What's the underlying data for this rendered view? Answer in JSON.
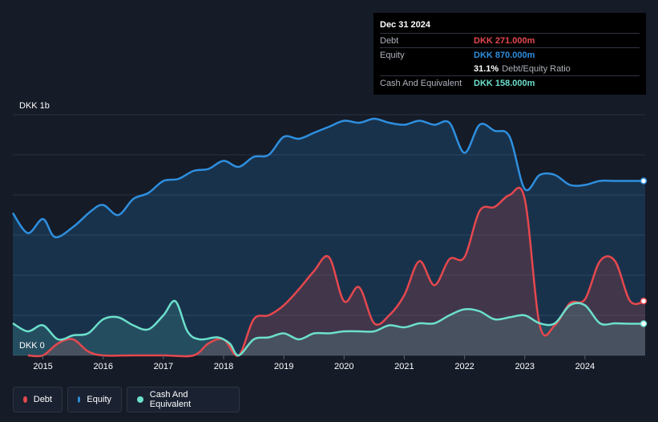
{
  "tooltip": {
    "date": "Dec 31 2024",
    "debt_label": "Debt",
    "debt_value": "DKK 271.000m",
    "equity_label": "Equity",
    "equity_value": "DKK 870.000m",
    "ratio_value": "31.1%",
    "ratio_label": "Debt/Equity Ratio",
    "cash_label": "Cash And Equivalent",
    "cash_value": "DKK 158.000m"
  },
  "legend": {
    "debt": "Debt",
    "equity": "Equity",
    "cash": "Cash And Equivalent"
  },
  "colors": {
    "debt": "#e5484d",
    "equity": "#2e8fdf",
    "cash": "#6ce0cc",
    "background": "#151b27"
  },
  "chart_data": {
    "type": "area",
    "title": "",
    "xlabel": "",
    "ylabel": "",
    "currency": "DKK",
    "unit": "million",
    "ylim": [
      0,
      1200
    ],
    "xlim": [
      2014.5,
      2025.0
    ],
    "y_axis_labels": [
      "DKK 1b",
      "DKK 0"
    ],
    "y_axis_label_values": [
      1000,
      0
    ],
    "x_ticks": [
      "2015",
      "2016",
      "2017",
      "2018",
      "2019",
      "2020",
      "2021",
      "2022",
      "2023",
      "2024"
    ],
    "x_tick_values": [
      2015,
      2016,
      2017,
      2018,
      2019,
      2020,
      2021,
      2022,
      2023,
      2024
    ],
    "series": [
      {
        "name": "Equity",
        "points": [
          [
            2014.5,
            710
          ],
          [
            2014.75,
            610
          ],
          [
            2015.0,
            680
          ],
          [
            2015.2,
            590
          ],
          [
            2015.5,
            640
          ],
          [
            2015.8,
            720
          ],
          [
            2016.0,
            750
          ],
          [
            2016.25,
            700
          ],
          [
            2016.5,
            780
          ],
          [
            2016.75,
            810
          ],
          [
            2017.0,
            870
          ],
          [
            2017.25,
            880
          ],
          [
            2017.5,
            920
          ],
          [
            2017.75,
            930
          ],
          [
            2018.0,
            970
          ],
          [
            2018.25,
            940
          ],
          [
            2018.5,
            990
          ],
          [
            2018.75,
            1000
          ],
          [
            2019.0,
            1090
          ],
          [
            2019.25,
            1080
          ],
          [
            2019.5,
            1110
          ],
          [
            2019.75,
            1140
          ],
          [
            2020.0,
            1170
          ],
          [
            2020.25,
            1160
          ],
          [
            2020.5,
            1180
          ],
          [
            2020.75,
            1160
          ],
          [
            2021.0,
            1150
          ],
          [
            2021.25,
            1170
          ],
          [
            2021.5,
            1150
          ],
          [
            2021.75,
            1160
          ],
          [
            2022.0,
            1010
          ],
          [
            2022.25,
            1150
          ],
          [
            2022.5,
            1120
          ],
          [
            2022.75,
            1090
          ],
          [
            2023.0,
            830
          ],
          [
            2023.25,
            900
          ],
          [
            2023.5,
            900
          ],
          [
            2023.75,
            850
          ],
          [
            2024.0,
            850
          ],
          [
            2024.25,
            870
          ],
          [
            2024.5,
            870
          ],
          [
            2024.75,
            870
          ],
          [
            2025.0,
            870
          ]
        ]
      },
      {
        "name": "Debt",
        "points": [
          [
            2014.75,
            0
          ],
          [
            2015.0,
            0
          ],
          [
            2015.25,
            60
          ],
          [
            2015.5,
            80
          ],
          [
            2015.75,
            20
          ],
          [
            2016.0,
            0
          ],
          [
            2016.5,
            0
          ],
          [
            2017.0,
            0
          ],
          [
            2017.5,
            0
          ],
          [
            2017.75,
            60
          ],
          [
            2018.0,
            80
          ],
          [
            2018.25,
            0
          ],
          [
            2018.5,
            180
          ],
          [
            2018.75,
            200
          ],
          [
            2019.0,
            250
          ],
          [
            2019.25,
            330
          ],
          [
            2019.5,
            420
          ],
          [
            2019.75,
            490
          ],
          [
            2020.0,
            270
          ],
          [
            2020.25,
            340
          ],
          [
            2020.5,
            160
          ],
          [
            2020.75,
            200
          ],
          [
            2021.0,
            300
          ],
          [
            2021.25,
            470
          ],
          [
            2021.5,
            350
          ],
          [
            2021.75,
            480
          ],
          [
            2022.0,
            490
          ],
          [
            2022.25,
            720
          ],
          [
            2022.5,
            740
          ],
          [
            2022.75,
            800
          ],
          [
            2023.0,
            780
          ],
          [
            2023.25,
            150
          ],
          [
            2023.5,
            150
          ],
          [
            2023.75,
            260
          ],
          [
            2024.0,
            280
          ],
          [
            2024.25,
            470
          ],
          [
            2024.5,
            470
          ],
          [
            2024.75,
            271
          ],
          [
            2025.0,
            271
          ]
        ]
      },
      {
        "name": "Cash And Equivalent",
        "points": [
          [
            2014.5,
            160
          ],
          [
            2014.75,
            120
          ],
          [
            2015.0,
            150
          ],
          [
            2015.25,
            80
          ],
          [
            2015.5,
            100
          ],
          [
            2015.75,
            110
          ],
          [
            2016.0,
            180
          ],
          [
            2016.25,
            190
          ],
          [
            2016.5,
            150
          ],
          [
            2016.75,
            130
          ],
          [
            2017.0,
            200
          ],
          [
            2017.2,
            270
          ],
          [
            2017.4,
            120
          ],
          [
            2017.6,
            80
          ],
          [
            2017.9,
            90
          ],
          [
            2018.1,
            60
          ],
          [
            2018.25,
            0
          ],
          [
            2018.5,
            80
          ],
          [
            2018.75,
            90
          ],
          [
            2019.0,
            110
          ],
          [
            2019.25,
            80
          ],
          [
            2019.5,
            110
          ],
          [
            2019.75,
            110
          ],
          [
            2020.0,
            120
          ],
          [
            2020.25,
            120
          ],
          [
            2020.5,
            120
          ],
          [
            2020.75,
            150
          ],
          [
            2021.0,
            140
          ],
          [
            2021.25,
            160
          ],
          [
            2021.5,
            160
          ],
          [
            2021.75,
            200
          ],
          [
            2022.0,
            230
          ],
          [
            2022.25,
            220
          ],
          [
            2022.5,
            180
          ],
          [
            2022.75,
            190
          ],
          [
            2023.0,
            200
          ],
          [
            2023.25,
            160
          ],
          [
            2023.5,
            160
          ],
          [
            2023.75,
            250
          ],
          [
            2024.0,
            250
          ],
          [
            2024.25,
            160
          ],
          [
            2024.5,
            160
          ],
          [
            2024.75,
            158
          ],
          [
            2025.0,
            158
          ]
        ]
      }
    ],
    "latest": {
      "date": "Dec 31 2024",
      "debt": 271,
      "equity": 870,
      "cash": 158,
      "debt_to_equity_pct": 31.1
    }
  }
}
